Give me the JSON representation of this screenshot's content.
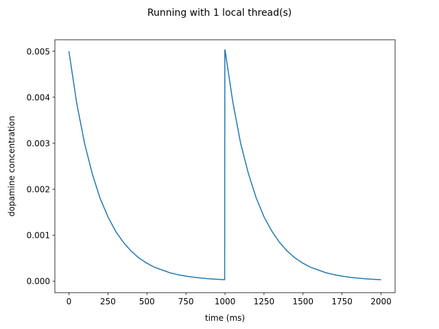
{
  "figure": {
    "title": "Running with 1 local thread(s)"
  },
  "chart_data": {
    "type": "line",
    "title": "Running with 1 local thread(s)",
    "xlabel": "time (ms)",
    "ylabel": "dopamine concentration",
    "xlim": [
      -90,
      2090
    ],
    "ylim": [
      -0.00025,
      0.00525
    ],
    "xticks": [
      0,
      250,
      500,
      750,
      1000,
      1250,
      1500,
      1750,
      2000
    ],
    "xtick_labels": [
      "0",
      "250",
      "500",
      "750",
      "1000",
      "1250",
      "1500",
      "1750",
      "2000"
    ],
    "yticks": [
      0.0,
      0.001,
      0.002,
      0.003,
      0.004,
      0.005
    ],
    "ytick_labels": [
      "0.000",
      "0.001",
      "0.002",
      "0.003",
      "0.004",
      "0.005"
    ],
    "grid": false,
    "legend": false,
    "series": [
      {
        "color": "#1f77b4",
        "x": [
          0,
          50,
          100,
          150,
          200,
          250,
          300,
          350,
          400,
          450,
          500,
          550,
          600,
          650,
          700,
          750,
          800,
          850,
          900,
          950,
          998,
          999,
          1000,
          1050,
          1100,
          1150,
          1200,
          1250,
          1300,
          1350,
          1400,
          1450,
          1500,
          1550,
          1600,
          1650,
          1700,
          1750,
          1800,
          1850,
          1900,
          1950,
          2000
        ],
        "y": [
          0.005,
          0.00387,
          0.003,
          0.00233,
          0.0018,
          0.0014,
          0.00108,
          0.00084,
          0.00065,
          0.0005,
          0.00039,
          0.0003,
          0.00024,
          0.00018,
          0.00014,
          0.00011,
          8.5e-05,
          6.6e-05,
          5.1e-05,
          4e-05,
          3.2e-05,
          0.00503,
          0.00503,
          0.0039,
          0.003,
          0.00234,
          0.00181,
          0.0014,
          0.00109,
          0.00084,
          0.00065,
          0.0005,
          0.00039,
          0.0003,
          0.00024,
          0.00018,
          0.00014,
          0.00011,
          8.5e-05,
          6.6e-05,
          5.1e-05,
          4e-05,
          3.2e-05
        ]
      }
    ]
  }
}
